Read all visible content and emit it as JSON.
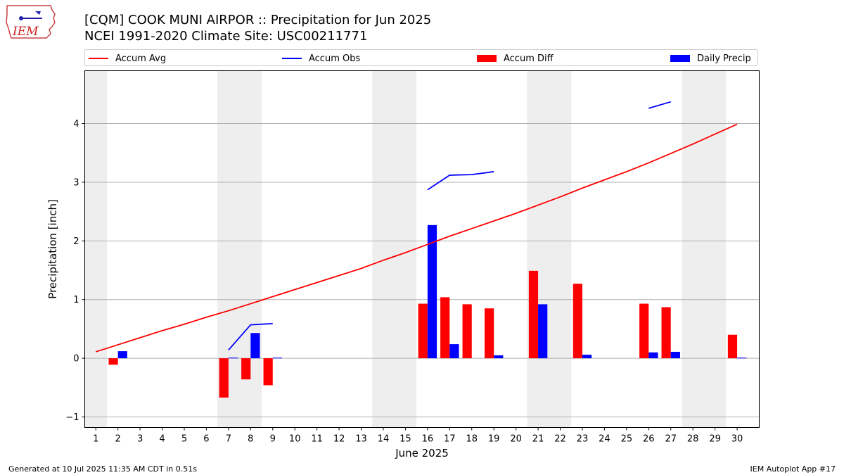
{
  "header": {
    "title_line1": "[CQM] COOK MUNI AIRPOR :: Precipitation for Jun 2025",
    "title_line2": "NCEI 1991-2020 Climate Site: USC00211771"
  },
  "logo": {
    "text": "IEM",
    "color": "#cc2222"
  },
  "legend": {
    "items": [
      {
        "label": "Accum Avg",
        "kind": "line",
        "color": "#ff0000"
      },
      {
        "label": "Accum Obs",
        "kind": "line",
        "color": "#0000ff"
      },
      {
        "label": "Accum Diff",
        "kind": "box",
        "color": "#ff0000"
      },
      {
        "label": "Daily Precip",
        "kind": "box",
        "color": "#0000ff"
      }
    ]
  },
  "footer": {
    "left": "Generated at 10 Jul 2025 11:35 AM CDT in 0.51s",
    "right": "IEM Autoplot App #17"
  },
  "chart_data": {
    "type": "bar",
    "xlabel": "June 2025",
    "ylabel": "Precipitation [inch]",
    "xlim": [
      0.5,
      31.0
    ],
    "ylim": [
      -1.18,
      4.9
    ],
    "yticks": [
      -1,
      0,
      1,
      2,
      3,
      4
    ],
    "grid": "y",
    "legend_position": "top",
    "weekend_shading": [
      [
        0.5,
        1.5
      ],
      [
        6.5,
        8.5
      ],
      [
        13.5,
        15.5
      ],
      [
        20.5,
        22.5
      ],
      [
        27.5,
        29.5
      ]
    ],
    "shade_color": "#eeeeee",
    "days": [
      1,
      2,
      3,
      4,
      5,
      6,
      7,
      8,
      9,
      10,
      11,
      12,
      13,
      14,
      15,
      16,
      17,
      18,
      19,
      20,
      21,
      22,
      23,
      24,
      25,
      26,
      27,
      28,
      29,
      30
    ],
    "accum_avg": [
      0.11,
      0.23,
      0.35,
      0.47,
      0.58,
      0.7,
      0.81,
      0.93,
      1.05,
      1.17,
      1.29,
      1.41,
      1.53,
      1.67,
      1.8,
      1.94,
      2.08,
      2.21,
      2.34,
      2.47,
      2.61,
      2.75,
      2.9,
      3.04,
      3.18,
      3.33,
      3.49,
      3.65,
      3.82,
      3.99
    ],
    "accum_obs_segments": [
      [
        [
          7,
          0.14
        ],
        [
          8,
          0.57
        ],
        [
          9,
          0.59
        ]
      ],
      [
        [
          16,
          2.87
        ],
        [
          17,
          3.12
        ],
        [
          18,
          3.13
        ],
        [
          19,
          3.18
        ]
      ],
      [
        [
          26,
          4.26
        ],
        [
          27,
          4.37
        ]
      ]
    ],
    "accum_diff": [
      {
        "day": 2,
        "value": -0.11
      },
      {
        "day": 7,
        "value": -0.67
      },
      {
        "day": 8,
        "value": -0.36
      },
      {
        "day": 9,
        "value": -0.46
      },
      {
        "day": 16,
        "value": 0.93
      },
      {
        "day": 17,
        "value": 1.04
      },
      {
        "day": 18,
        "value": 0.92
      },
      {
        "day": 19,
        "value": 0.85
      },
      {
        "day": 21,
        "value": 1.49
      },
      {
        "day": 23,
        "value": 1.27
      },
      {
        "day": 26,
        "value": 0.93
      },
      {
        "day": 27,
        "value": 0.87
      },
      {
        "day": 30,
        "value": 0.4
      }
    ],
    "daily_precip": [
      {
        "day": 2,
        "value": 0.12
      },
      {
        "day": 7,
        "value": 0.01
      },
      {
        "day": 8,
        "value": 0.43
      },
      {
        "day": 9,
        "value": 0.01
      },
      {
        "day": 16,
        "value": 2.27
      },
      {
        "day": 17,
        "value": 0.24
      },
      {
        "day": 19,
        "value": 0.05
      },
      {
        "day": 21,
        "value": 0.92
      },
      {
        "day": 23,
        "value": 0.06
      },
      {
        "day": 26,
        "value": 0.1
      },
      {
        "day": 27,
        "value": 0.11
      },
      {
        "day": 30,
        "value": 0.01
      }
    ]
  }
}
